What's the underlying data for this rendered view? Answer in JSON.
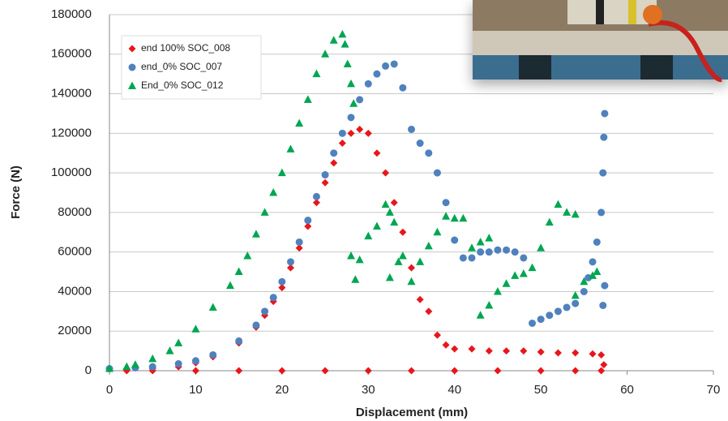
{
  "chart_data": {
    "type": "scatter",
    "x_label": "Displacement (mm)",
    "y_label": "Force (N)",
    "xlim": [
      0,
      70
    ],
    "xticks": [
      0,
      10,
      20,
      30,
      40,
      50,
      60,
      70
    ],
    "ylim": [
      0,
      180000
    ],
    "yticks": [
      0,
      20000,
      40000,
      60000,
      80000,
      100000,
      120000,
      140000,
      160000,
      180000
    ],
    "grid": true,
    "legend": "upper left",
    "series": [
      {
        "name": "end 100% SOC_008",
        "color": "#e8161b",
        "marker": "diamond",
        "x": [
          0,
          2,
          5,
          8,
          10,
          12,
          15,
          17,
          18,
          19,
          20,
          21,
          22,
          23,
          24,
          25,
          26,
          27,
          28,
          29,
          30,
          31,
          32,
          33,
          34,
          35,
          36,
          37,
          38,
          39,
          40,
          42,
          44,
          46,
          48,
          50,
          52,
          54,
          56,
          57,
          57.3,
          57,
          54,
          50,
          45,
          40,
          35,
          30,
          25,
          20,
          15,
          10,
          5,
          2
        ],
        "values": [
          1000,
          1000,
          1000,
          2000,
          4000,
          7000,
          14000,
          22000,
          28000,
          35000,
          42000,
          52000,
          62000,
          73000,
          85000,
          95000,
          105000,
          115000,
          120000,
          122000,
          120000,
          110000,
          100000,
          85000,
          70000,
          52000,
          36000,
          30000,
          18000,
          13000,
          11000,
          11000,
          10000,
          10000,
          10000,
          9500,
          9000,
          9000,
          8500,
          8000,
          3000,
          0,
          0,
          0,
          0,
          0,
          0,
          0,
          0,
          0,
          0,
          0,
          0,
          0
        ]
      },
      {
        "name": "end_0% SOC_007",
        "color": "#4f81bd",
        "marker": "circle",
        "x": [
          0,
          3,
          5,
          8,
          10,
          12,
          15,
          17,
          18,
          19,
          20,
          21,
          22,
          23,
          24,
          25,
          26,
          27,
          28,
          29,
          30,
          31,
          32,
          33,
          34,
          35,
          36,
          37,
          38,
          39,
          40,
          41,
          42,
          43,
          44,
          45,
          46,
          47,
          48,
          49,
          50,
          51,
          52,
          53,
          54,
          55,
          55.5,
          56,
          56.5,
          57,
          57.2,
          57.3,
          57.4,
          57.2,
          57.4
        ],
        "values": [
          1000,
          1500,
          2000,
          3500,
          5000,
          8000,
          15000,
          23000,
          30000,
          37000,
          45000,
          55000,
          65000,
          76000,
          88000,
          99000,
          110000,
          120000,
          128000,
          137000,
          145000,
          150000,
          154000,
          155000,
          143000,
          122000,
          115000,
          110000,
          100000,
          85000,
          66000,
          57000,
          57000,
          60000,
          60000,
          61000,
          61000,
          60000,
          57000,
          24000,
          26000,
          28000,
          30000,
          32000,
          34000,
          40000,
          47000,
          55000,
          65000,
          80000,
          100000,
          118000,
          130000,
          33000,
          43000
        ]
      },
      {
        "name": "End_0% SOC_012",
        "color": "#00a651",
        "marker": "triangle",
        "x": [
          0,
          2,
          3,
          5,
          7,
          8,
          10,
          12,
          14,
          15,
          16,
          17,
          18,
          19,
          20,
          21,
          22,
          23,
          24,
          25,
          26,
          27,
          27.3,
          27.6,
          28,
          28.3,
          28,
          28.5,
          29,
          30,
          31,
          32,
          32.5,
          33,
          32.5,
          33.5,
          34,
          35,
          36,
          37,
          38,
          39,
          40,
          41,
          42,
          43,
          44,
          43,
          44,
          45,
          46,
          47,
          48,
          49,
          50,
          51,
          52,
          53,
          54,
          54,
          55,
          56,
          56.5
        ],
        "values": [
          1000,
          2000,
          3000,
          6000,
          10000,
          14000,
          21000,
          32000,
          43000,
          50000,
          58000,
          69000,
          80000,
          90000,
          100000,
          112000,
          125000,
          137000,
          150000,
          160000,
          167000,
          170000,
          165000,
          155000,
          145000,
          135000,
          58000,
          46000,
          56000,
          68000,
          73000,
          84000,
          80000,
          75000,
          47000,
          55000,
          58000,
          45000,
          55000,
          63000,
          70000,
          78000,
          77000,
          77000,
          62000,
          65000,
          67000,
          28000,
          33000,
          40000,
          44000,
          48000,
          49000,
          52000,
          62000,
          75000,
          84000,
          80000,
          79000,
          38000,
          45000,
          48000,
          50000
        ]
      }
    ]
  }
}
